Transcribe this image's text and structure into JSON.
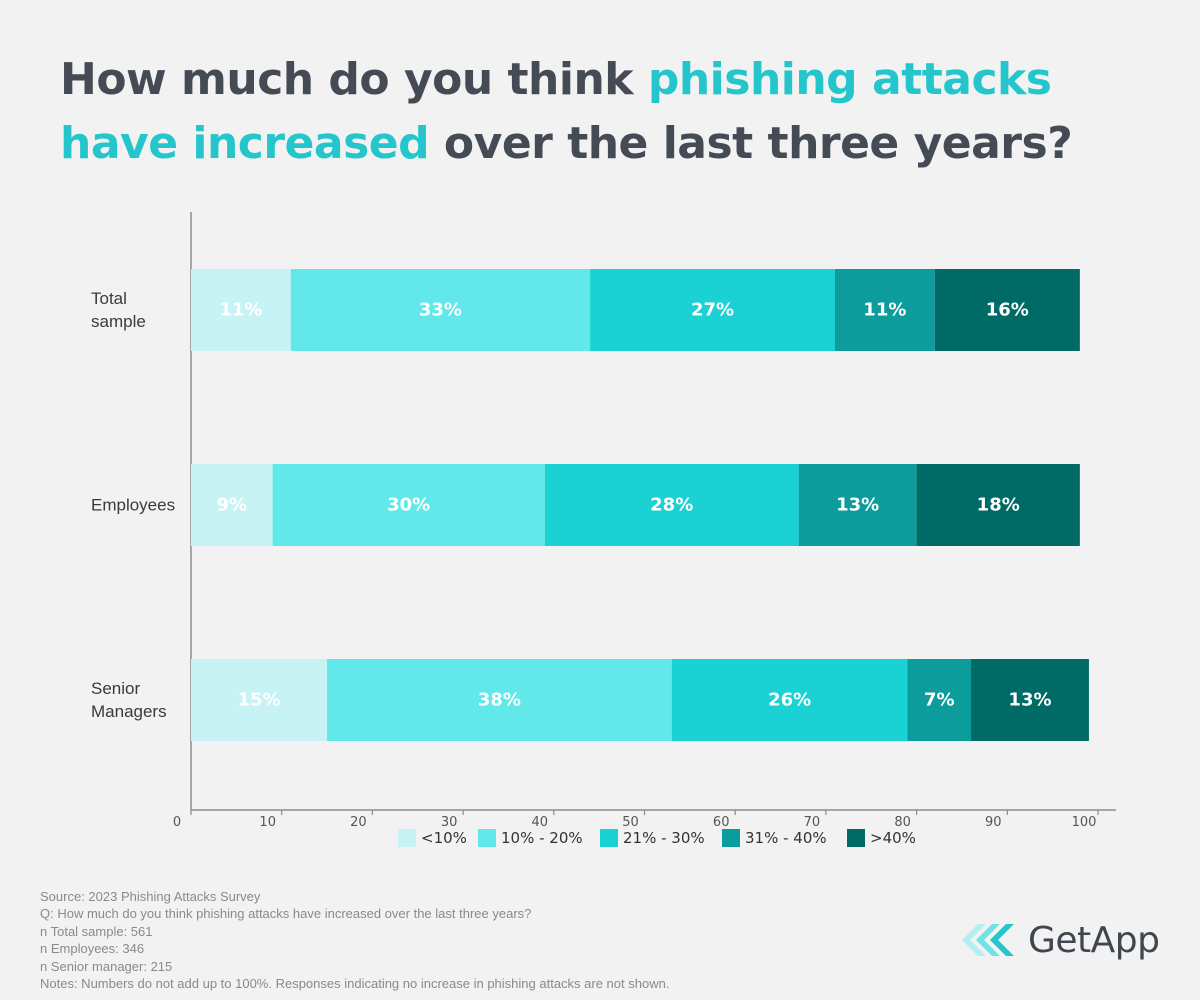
{
  "title": {
    "part1": "How much do you think ",
    "highlight": "phishing attacks have increased",
    "part2": " over the last three years?"
  },
  "chart_data": {
    "type": "bar",
    "orientation": "horizontal",
    "stacked": true,
    "categories": [
      "Total sample",
      "Employees",
      "Senior Managers"
    ],
    "category_lines": [
      [
        "Total",
        "sample"
      ],
      [
        "Employees"
      ],
      [
        "Senior",
        "Managers"
      ]
    ],
    "series": [
      {
        "name": "<10%",
        "color": "#c7f3f5",
        "values": [
          11,
          9,
          15
        ]
      },
      {
        "name": "10% - 20%",
        "color": "#62e8ea",
        "values": [
          33,
          30,
          38
        ]
      },
      {
        "name": "21% - 30%",
        "color": "#1ad1d3",
        "values": [
          27,
          28,
          26
        ]
      },
      {
        "name": "31% - 40%",
        "color": "#0b9c9b",
        "values": [
          11,
          13,
          7
        ]
      },
      {
        "name": ">40%",
        "color": "#006b66",
        "values": [
          16,
          18,
          13
        ]
      }
    ],
    "xlim": [
      0,
      100
    ],
    "xticks": [
      0,
      10,
      20,
      30,
      40,
      50,
      60,
      70,
      80,
      90,
      100
    ],
    "legend": "bottom"
  },
  "footer": {
    "source": "Source: 2023 Phishing Attacks Survey",
    "question": "Q: How much do you think phishing attacks have increased over the last three years?",
    "n_total": "n Total sample: 561",
    "n_employees": "n Employees: 346",
    "n_senior": "n Senior manager: 215",
    "notes": "Notes: Numbers do not add up to 100%. Responses indicating no increase in phishing attacks are not shown."
  },
  "brand": {
    "name": "GetApp",
    "color": "#3f4650",
    "accent": "#24c6cc"
  }
}
